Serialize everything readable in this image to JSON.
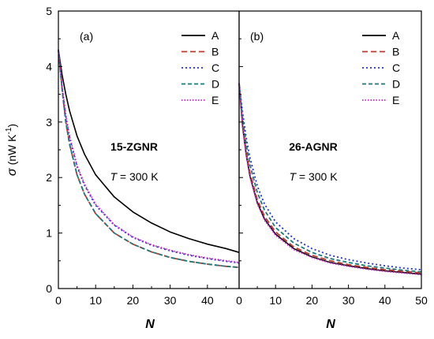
{
  "chart_data": {
    "type": "line",
    "y_axis": {
      "symbol": "σ",
      "unit_text": "(nW K",
      "unit_sup": "-1",
      "unit_close": ")",
      "ylim": [
        0,
        5
      ],
      "ticks": [
        0,
        1,
        2,
        3,
        4,
        5
      ]
    },
    "panels": [
      {
        "panel_label": "(a)",
        "structure_label": "15-ZGNR",
        "temperature": {
          "italic": "T",
          "rest": " = 300 K"
        },
        "xlabel": "N",
        "xlim": [
          0,
          48.5
        ],
        "xticks": [
          0,
          10,
          20,
          30,
          40
        ],
        "series": [
          {
            "name": "A",
            "color": "#000000",
            "dash": "",
            "x": [
              0,
              1,
              2,
              3,
              5,
              7,
              10,
              15,
              20,
              25,
              30,
              35,
              40,
              45,
              48.5
            ],
            "y": [
              4.3,
              3.85,
              3.5,
              3.2,
              2.75,
              2.42,
              2.05,
              1.65,
              1.38,
              1.18,
              1.02,
              0.9,
              0.8,
              0.72,
              0.65
            ]
          },
          {
            "name": "B",
            "color": "#c0392b",
            "dash": "7,4",
            "x": [
              0,
              1,
              2,
              3,
              5,
              7,
              10,
              15,
              20,
              25,
              30,
              35,
              40,
              45,
              48.5
            ],
            "y": [
              4.3,
              3.6,
              3.0,
              2.6,
              2.05,
              1.7,
              1.35,
              1.0,
              0.8,
              0.66,
              0.56,
              0.49,
              0.44,
              0.4,
              0.38
            ]
          },
          {
            "name": "C",
            "color": "#2233cc",
            "dash": "2,3",
            "x": [
              0,
              1,
              2,
              3,
              5,
              7,
              10,
              15,
              20,
              25,
              30,
              35,
              40,
              45,
              48.5
            ],
            "y": [
              4.3,
              3.62,
              3.1,
              2.72,
              2.2,
              1.86,
              1.5,
              1.14,
              0.92,
              0.78,
              0.68,
              0.6,
              0.54,
              0.49,
              0.46
            ]
          },
          {
            "name": "D",
            "color": "#1a7a7a",
            "dash": "5,3",
            "x": [
              0,
              1,
              2,
              3,
              5,
              7,
              10,
              15,
              20,
              25,
              30,
              35,
              40,
              45,
              48.5
            ],
            "y": [
              4.3,
              3.58,
              3.0,
              2.6,
              2.05,
              1.7,
              1.35,
              1.0,
              0.8,
              0.66,
              0.56,
              0.49,
              0.44,
              0.4,
              0.38
            ]
          },
          {
            "name": "E",
            "color": "#cc22cc",
            "dash": "1.5,2",
            "x": [
              0,
              1,
              2,
              3,
              5,
              7,
              10,
              15,
              20,
              25,
              30,
              35,
              40,
              45,
              48.5
            ],
            "y": [
              4.3,
              3.64,
              3.12,
              2.74,
              2.22,
              1.88,
              1.52,
              1.15,
              0.93,
              0.79,
              0.69,
              0.61,
              0.55,
              0.5,
              0.47
            ]
          }
        ]
      },
      {
        "panel_label": "(b)",
        "structure_label": "26-AGNR",
        "temperature": {
          "italic": "T",
          "rest": " = 300 K"
        },
        "xlabel": "N",
        "xlim": [
          0,
          50
        ],
        "xticks": [
          0,
          10,
          20,
          30,
          40,
          50
        ],
        "series": [
          {
            "name": "A",
            "color": "#000000",
            "dash": "",
            "x": [
              0,
              1,
              2,
              3,
              5,
              7,
              10,
              15,
              20,
              25,
              30,
              35,
              40,
              45,
              50
            ],
            "y": [
              3.7,
              2.9,
              2.4,
              2.02,
              1.55,
              1.25,
              0.98,
              0.72,
              0.57,
              0.47,
              0.41,
              0.36,
              0.32,
              0.29,
              0.26
            ]
          },
          {
            "name": "B",
            "color": "#c0392b",
            "dash": "7,4",
            "x": [
              0,
              1,
              2,
              3,
              5,
              7,
              10,
              15,
              20,
              25,
              30,
              35,
              40,
              45,
              50
            ],
            "y": [
              3.7,
              2.95,
              2.45,
              2.08,
              1.6,
              1.3,
              1.02,
              0.75,
              0.6,
              0.5,
              0.43,
              0.38,
              0.34,
              0.31,
              0.28
            ]
          },
          {
            "name": "C",
            "color": "#2233cc",
            "dash": "2,3",
            "x": [
              0,
              1,
              2,
              3,
              5,
              7,
              10,
              15,
              20,
              25,
              30,
              35,
              40,
              45,
              50
            ],
            "y": [
              3.7,
              3.15,
              2.7,
              2.35,
              1.85,
              1.52,
              1.2,
              0.9,
              0.72,
              0.6,
              0.52,
              0.46,
              0.41,
              0.37,
              0.34
            ]
          },
          {
            "name": "D",
            "color": "#1a7a7a",
            "dash": "5,3",
            "x": [
              0,
              1,
              2,
              3,
              5,
              7,
              10,
              15,
              20,
              25,
              30,
              35,
              40,
              45,
              50
            ],
            "y": [
              3.7,
              3.05,
              2.58,
              2.22,
              1.73,
              1.41,
              1.1,
              0.82,
              0.65,
              0.54,
              0.47,
              0.41,
              0.37,
              0.33,
              0.3
            ]
          },
          {
            "name": "E",
            "color": "#cc22cc",
            "dash": "1.5,2",
            "x": [
              0,
              1,
              2,
              3,
              5,
              7,
              10,
              15,
              20,
              25,
              30,
              35,
              40,
              45,
              50
            ],
            "y": [
              3.7,
              2.88,
              2.38,
              2.0,
              1.53,
              1.23,
              0.96,
              0.7,
              0.56,
              0.46,
              0.4,
              0.35,
              0.31,
              0.28,
              0.25
            ]
          }
        ]
      }
    ]
  }
}
